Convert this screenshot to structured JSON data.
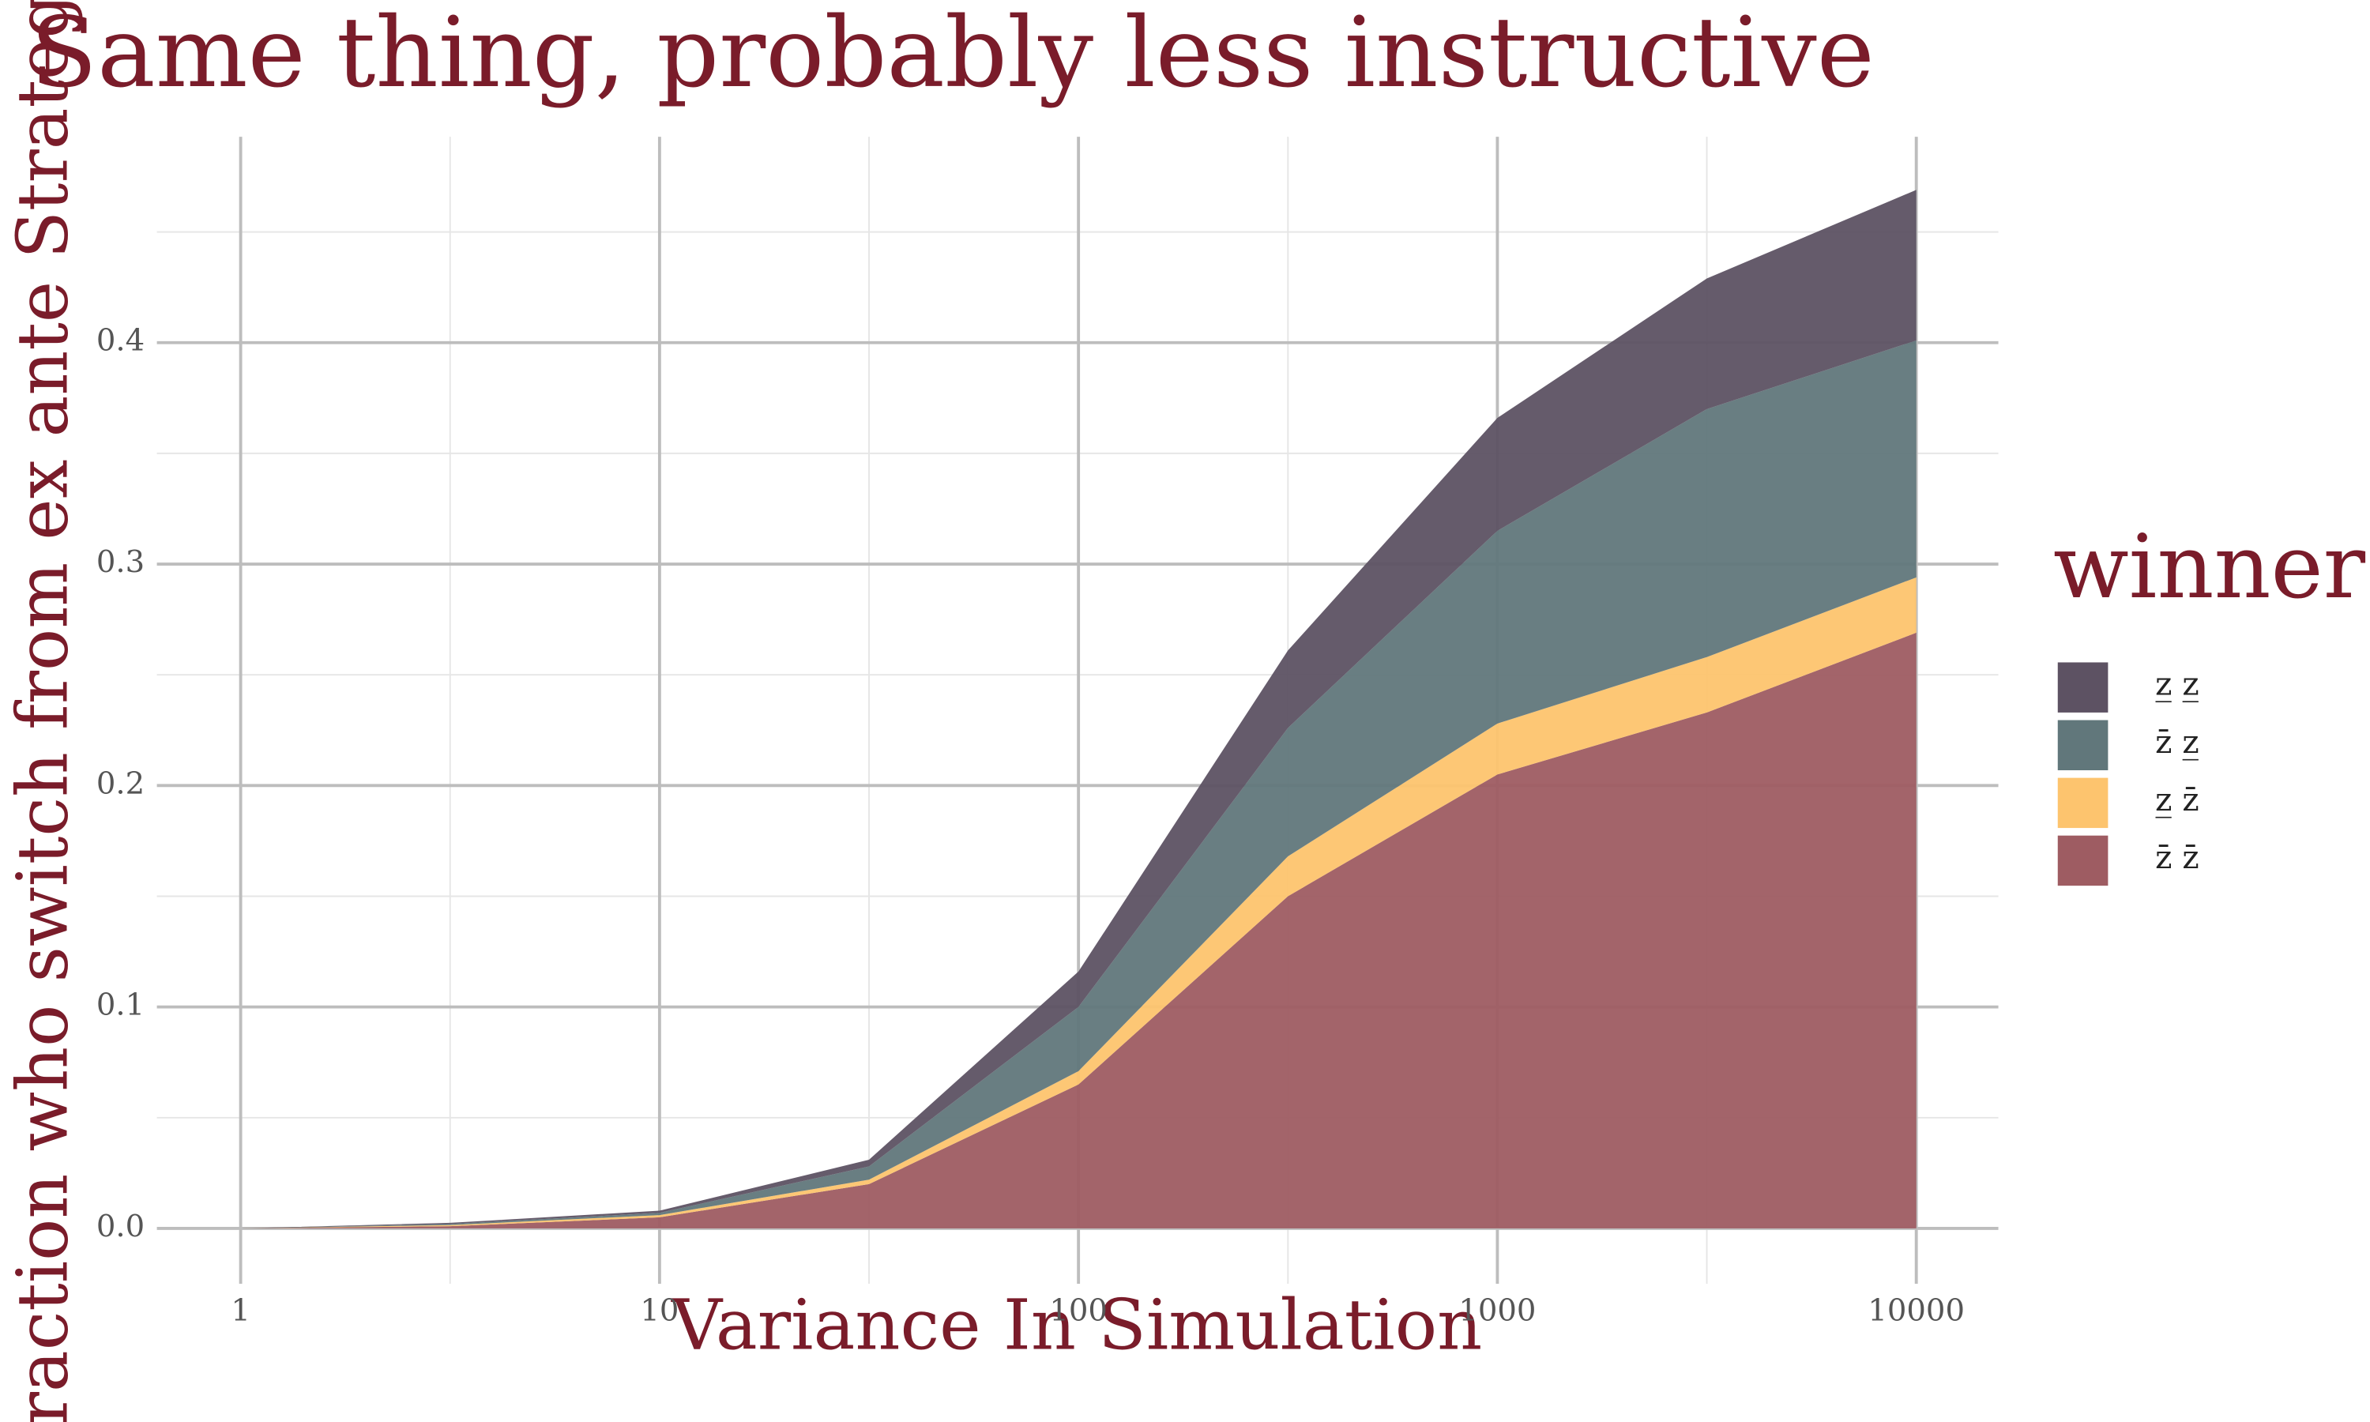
{
  "chart_data": {
    "type": "area",
    "title": "Same thing, probably less instructive",
    "x_label": "Variance In Simulation",
    "y_label": "Fraction who switch from ex ante Strategy",
    "legend_title": "winner",
    "x": [
      1,
      3.162,
      10,
      31.62,
      100,
      316.2,
      1000,
      3162,
      10000
    ],
    "series": [
      {
        "name": "z̄ z̄",
        "color": "#9e5c62",
        "values": [
          0,
          0.001,
          0.005,
          0.02,
          0.065,
          0.15,
          0.205,
          0.233,
          0.269
        ]
      },
      {
        "name": "z̲ z̄",
        "color": "#fdc46e",
        "values": [
          0,
          0.0005,
          0.001,
          0.002,
          0.006,
          0.018,
          0.023,
          0.025,
          0.025
        ]
      },
      {
        "name": "z̄ z̲",
        "color": "#61777b",
        "values": [
          0,
          0.0005,
          0.001,
          0.006,
          0.029,
          0.058,
          0.087,
          0.112,
          0.107
        ]
      },
      {
        "name": "z̲ z̲",
        "color": "#5d5263",
        "values": [
          0,
          0.0005,
          0.001,
          0.003,
          0.016,
          0.035,
          0.051,
          0.059,
          0.068
        ]
      }
    ],
    "stacked": true,
    "x_log": true,
    "xlim": [
      0.631,
      15700
    ],
    "xticks": [
      1,
      10,
      100,
      1000,
      10000
    ],
    "ylim": [
      -0.025,
      0.493
    ],
    "yticks": [
      {
        "value": 0,
        "label": "0.0"
      },
      {
        "value": 0.1,
        "label": "0.1"
      },
      {
        "value": 0.2,
        "label": "0.2"
      },
      {
        "value": 0.3,
        "label": "0.3"
      },
      {
        "value": 0.4,
        "label": "0.4"
      }
    ],
    "grid": true,
    "legend_position": "right"
  }
}
